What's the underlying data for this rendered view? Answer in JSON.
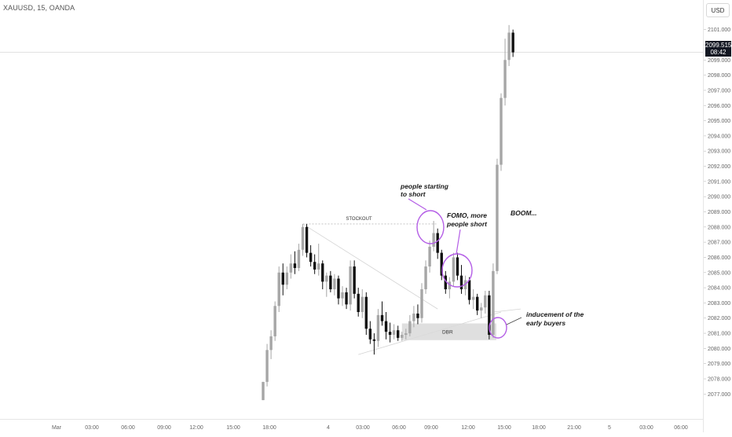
{
  "header": {
    "symbol": "XAUUSD, 15, OANDA"
  },
  "price_scale": {
    "currency": "USD",
    "ticks": [
      "2101.000",
      "2100.000",
      "2099.000",
      "2098.000",
      "2097.000",
      "2096.000",
      "2095.000",
      "2094.000",
      "2093.000",
      "2092.000",
      "2091.000",
      "2090.000",
      "2089.000",
      "2088.000",
      "2087.000",
      "2086.000",
      "2085.000",
      "2084.000",
      "2083.000",
      "2082.000",
      "2081.000",
      "2080.000",
      "2079.000",
      "2078.000",
      "2077.000"
    ],
    "last_price": "2099.515",
    "countdown": "08:42"
  },
  "time_scale": {
    "labels": [
      "Mar",
      "03:00",
      "06:00",
      "09:00",
      "12:00",
      "15:00",
      "18:00",
      "4",
      "03:00",
      "06:00",
      "09:00",
      "12:00",
      "15:00",
      "18:00",
      "21:00",
      "5",
      "03:00",
      "06:00"
    ]
  },
  "annotations": {
    "stockout": "STOCKOUT",
    "dbr": "DBR",
    "people_starting_1": "people starting",
    "people_starting_2": "to short",
    "fomo_1": "FOMO, more",
    "fomo_2": "people short",
    "boom": "BOOM...",
    "inducement_1": "inducement of the",
    "inducement_2": "early buyers"
  },
  "colors": {
    "up": "#a6a6a6",
    "down": "#111111",
    "circle": "#b45ee6",
    "zone": "#d9d9d9",
    "last_price_bg": "#131722"
  },
  "chart_data": {
    "type": "candlestick",
    "title": "",
    "xlabel": "",
    "ylabel": "",
    "ylim": [
      2076.5,
      2101.5
    ],
    "candles": [
      {
        "o": 2076.6,
        "h": 2077.8,
        "l": 2076.6,
        "c": 2077.8
      },
      {
        "o": 2077.8,
        "h": 2080.3,
        "l": 2077.5,
        "c": 2079.9
      },
      {
        "o": 2079.9,
        "h": 2081.2,
        "l": 2079.3,
        "c": 2080.8
      },
      {
        "o": 2080.8,
        "h": 2083.1,
        "l": 2080.5,
        "c": 2082.8
      },
      {
        "o": 2082.8,
        "h": 2085.4,
        "l": 2082.4,
        "c": 2085.0
      },
      {
        "o": 2085.0,
        "h": 2085.6,
        "l": 2083.5,
        "c": 2084.2
      },
      {
        "o": 2084.2,
        "h": 2085.4,
        "l": 2083.9,
        "c": 2085.0
      },
      {
        "o": 2085.0,
        "h": 2086.2,
        "l": 2084.6,
        "c": 2085.6
      },
      {
        "o": 2085.6,
        "h": 2086.4,
        "l": 2084.9,
        "c": 2085.3
      },
      {
        "o": 2085.3,
        "h": 2086.9,
        "l": 2085.1,
        "c": 2086.5
      },
      {
        "o": 2086.5,
        "h": 2088.2,
        "l": 2086.1,
        "c": 2088.0
      },
      {
        "o": 2088.0,
        "h": 2088.2,
        "l": 2086.0,
        "c": 2086.3
      },
      {
        "o": 2086.3,
        "h": 2086.8,
        "l": 2085.4,
        "c": 2085.7
      },
      {
        "o": 2085.7,
        "h": 2086.2,
        "l": 2084.9,
        "c": 2085.2
      },
      {
        "o": 2085.2,
        "h": 2086.9,
        "l": 2084.8,
        "c": 2085.6
      },
      {
        "o": 2085.6,
        "h": 2085.8,
        "l": 2083.9,
        "c": 2084.4
      },
      {
        "o": 2084.4,
        "h": 2085.0,
        "l": 2083.4,
        "c": 2084.8
      },
      {
        "o": 2084.8,
        "h": 2085.1,
        "l": 2083.7,
        "c": 2083.9
      },
      {
        "o": 2083.9,
        "h": 2084.9,
        "l": 2083.5,
        "c": 2084.6
      },
      {
        "o": 2084.6,
        "h": 2084.8,
        "l": 2082.9,
        "c": 2083.3
      },
      {
        "o": 2083.3,
        "h": 2084.1,
        "l": 2082.8,
        "c": 2083.7
      },
      {
        "o": 2083.7,
        "h": 2084.0,
        "l": 2082.6,
        "c": 2082.9
      },
      {
        "o": 2082.9,
        "h": 2085.8,
        "l": 2082.5,
        "c": 2085.4
      },
      {
        "o": 2085.4,
        "h": 2085.8,
        "l": 2083.3,
        "c": 2083.6
      },
      {
        "o": 2083.6,
        "h": 2084.0,
        "l": 2082.1,
        "c": 2082.4
      },
      {
        "o": 2082.4,
        "h": 2083.9,
        "l": 2082.0,
        "c": 2083.4
      },
      {
        "o": 2083.4,
        "h": 2083.7,
        "l": 2080.9,
        "c": 2081.3
      },
      {
        "o": 2081.3,
        "h": 2081.8,
        "l": 2080.3,
        "c": 2080.6
      },
      {
        "o": 2080.6,
        "h": 2081.0,
        "l": 2079.6,
        "c": 2080.5
      },
      {
        "o": 2080.5,
        "h": 2082.6,
        "l": 2080.1,
        "c": 2082.2
      },
      {
        "o": 2082.2,
        "h": 2083.1,
        "l": 2081.5,
        "c": 2081.8
      },
      {
        "o": 2081.8,
        "h": 2082.4,
        "l": 2080.6,
        "c": 2081.1
      },
      {
        "o": 2081.1,
        "h": 2081.7,
        "l": 2080.4,
        "c": 2080.9
      },
      {
        "o": 2080.9,
        "h": 2081.6,
        "l": 2080.6,
        "c": 2081.2
      },
      {
        "o": 2081.2,
        "h": 2081.5,
        "l": 2080.5,
        "c": 2080.7
      },
      {
        "o": 2080.7,
        "h": 2081.1,
        "l": 2080.5,
        "c": 2080.9
      },
      {
        "o": 2080.9,
        "h": 2081.3,
        "l": 2080.6,
        "c": 2081.0
      },
      {
        "o": 2081.0,
        "h": 2082.2,
        "l": 2080.8,
        "c": 2081.8
      },
      {
        "o": 2081.8,
        "h": 2082.8,
        "l": 2081.4,
        "c": 2082.3
      },
      {
        "o": 2082.3,
        "h": 2082.9,
        "l": 2081.6,
        "c": 2082.0
      },
      {
        "o": 2082.0,
        "h": 2084.3,
        "l": 2081.7,
        "c": 2083.9
      },
      {
        "o": 2083.9,
        "h": 2085.8,
        "l": 2083.6,
        "c": 2085.4
      },
      {
        "o": 2085.4,
        "h": 2087.1,
        "l": 2085.0,
        "c": 2086.7
      },
      {
        "o": 2086.7,
        "h": 2088.4,
        "l": 2086.4,
        "c": 2087.6
      },
      {
        "o": 2087.6,
        "h": 2087.9,
        "l": 2085.9,
        "c": 2086.3
      },
      {
        "o": 2086.3,
        "h": 2086.5,
        "l": 2084.5,
        "c": 2084.8
      },
      {
        "o": 2084.8,
        "h": 2085.1,
        "l": 2083.6,
        "c": 2083.9
      },
      {
        "o": 2083.9,
        "h": 2084.7,
        "l": 2083.3,
        "c": 2084.4
      },
      {
        "o": 2084.4,
        "h": 2086.3,
        "l": 2084.1,
        "c": 2086.0
      },
      {
        "o": 2086.0,
        "h": 2086.3,
        "l": 2084.5,
        "c": 2084.8
      },
      {
        "o": 2084.8,
        "h": 2085.5,
        "l": 2083.6,
        "c": 2083.9
      },
      {
        "o": 2083.9,
        "h": 2084.8,
        "l": 2083.5,
        "c": 2084.5
      },
      {
        "o": 2084.5,
        "h": 2084.7,
        "l": 2082.9,
        "c": 2083.2
      },
      {
        "o": 2083.2,
        "h": 2083.9,
        "l": 2082.6,
        "c": 2083.4
      },
      {
        "o": 2083.4,
        "h": 2083.6,
        "l": 2082.2,
        "c": 2082.5
      },
      {
        "o": 2082.5,
        "h": 2083.0,
        "l": 2082.0,
        "c": 2082.7
      },
      {
        "o": 2082.7,
        "h": 2083.8,
        "l": 2082.3,
        "c": 2083.5
      },
      {
        "o": 2083.5,
        "h": 2083.8,
        "l": 2080.6,
        "c": 2080.9
      },
      {
        "o": 2080.9,
        "h": 2085.6,
        "l": 2080.7,
        "c": 2085.1
      },
      {
        "o": 2085.1,
        "h": 2092.5,
        "l": 2084.9,
        "c": 2092.1
      },
      {
        "o": 2092.1,
        "h": 2096.8,
        "l": 2091.7,
        "c": 2096.5
      },
      {
        "o": 2096.5,
        "h": 2100.4,
        "l": 2096.0,
        "c": 2099.0
      },
      {
        "o": 2099.0,
        "h": 2101.3,
        "l": 2098.6,
        "c": 2100.8
      },
      {
        "o": 2100.8,
        "h": 2101.0,
        "l": 2099.2,
        "c": 2099.5
      }
    ]
  }
}
